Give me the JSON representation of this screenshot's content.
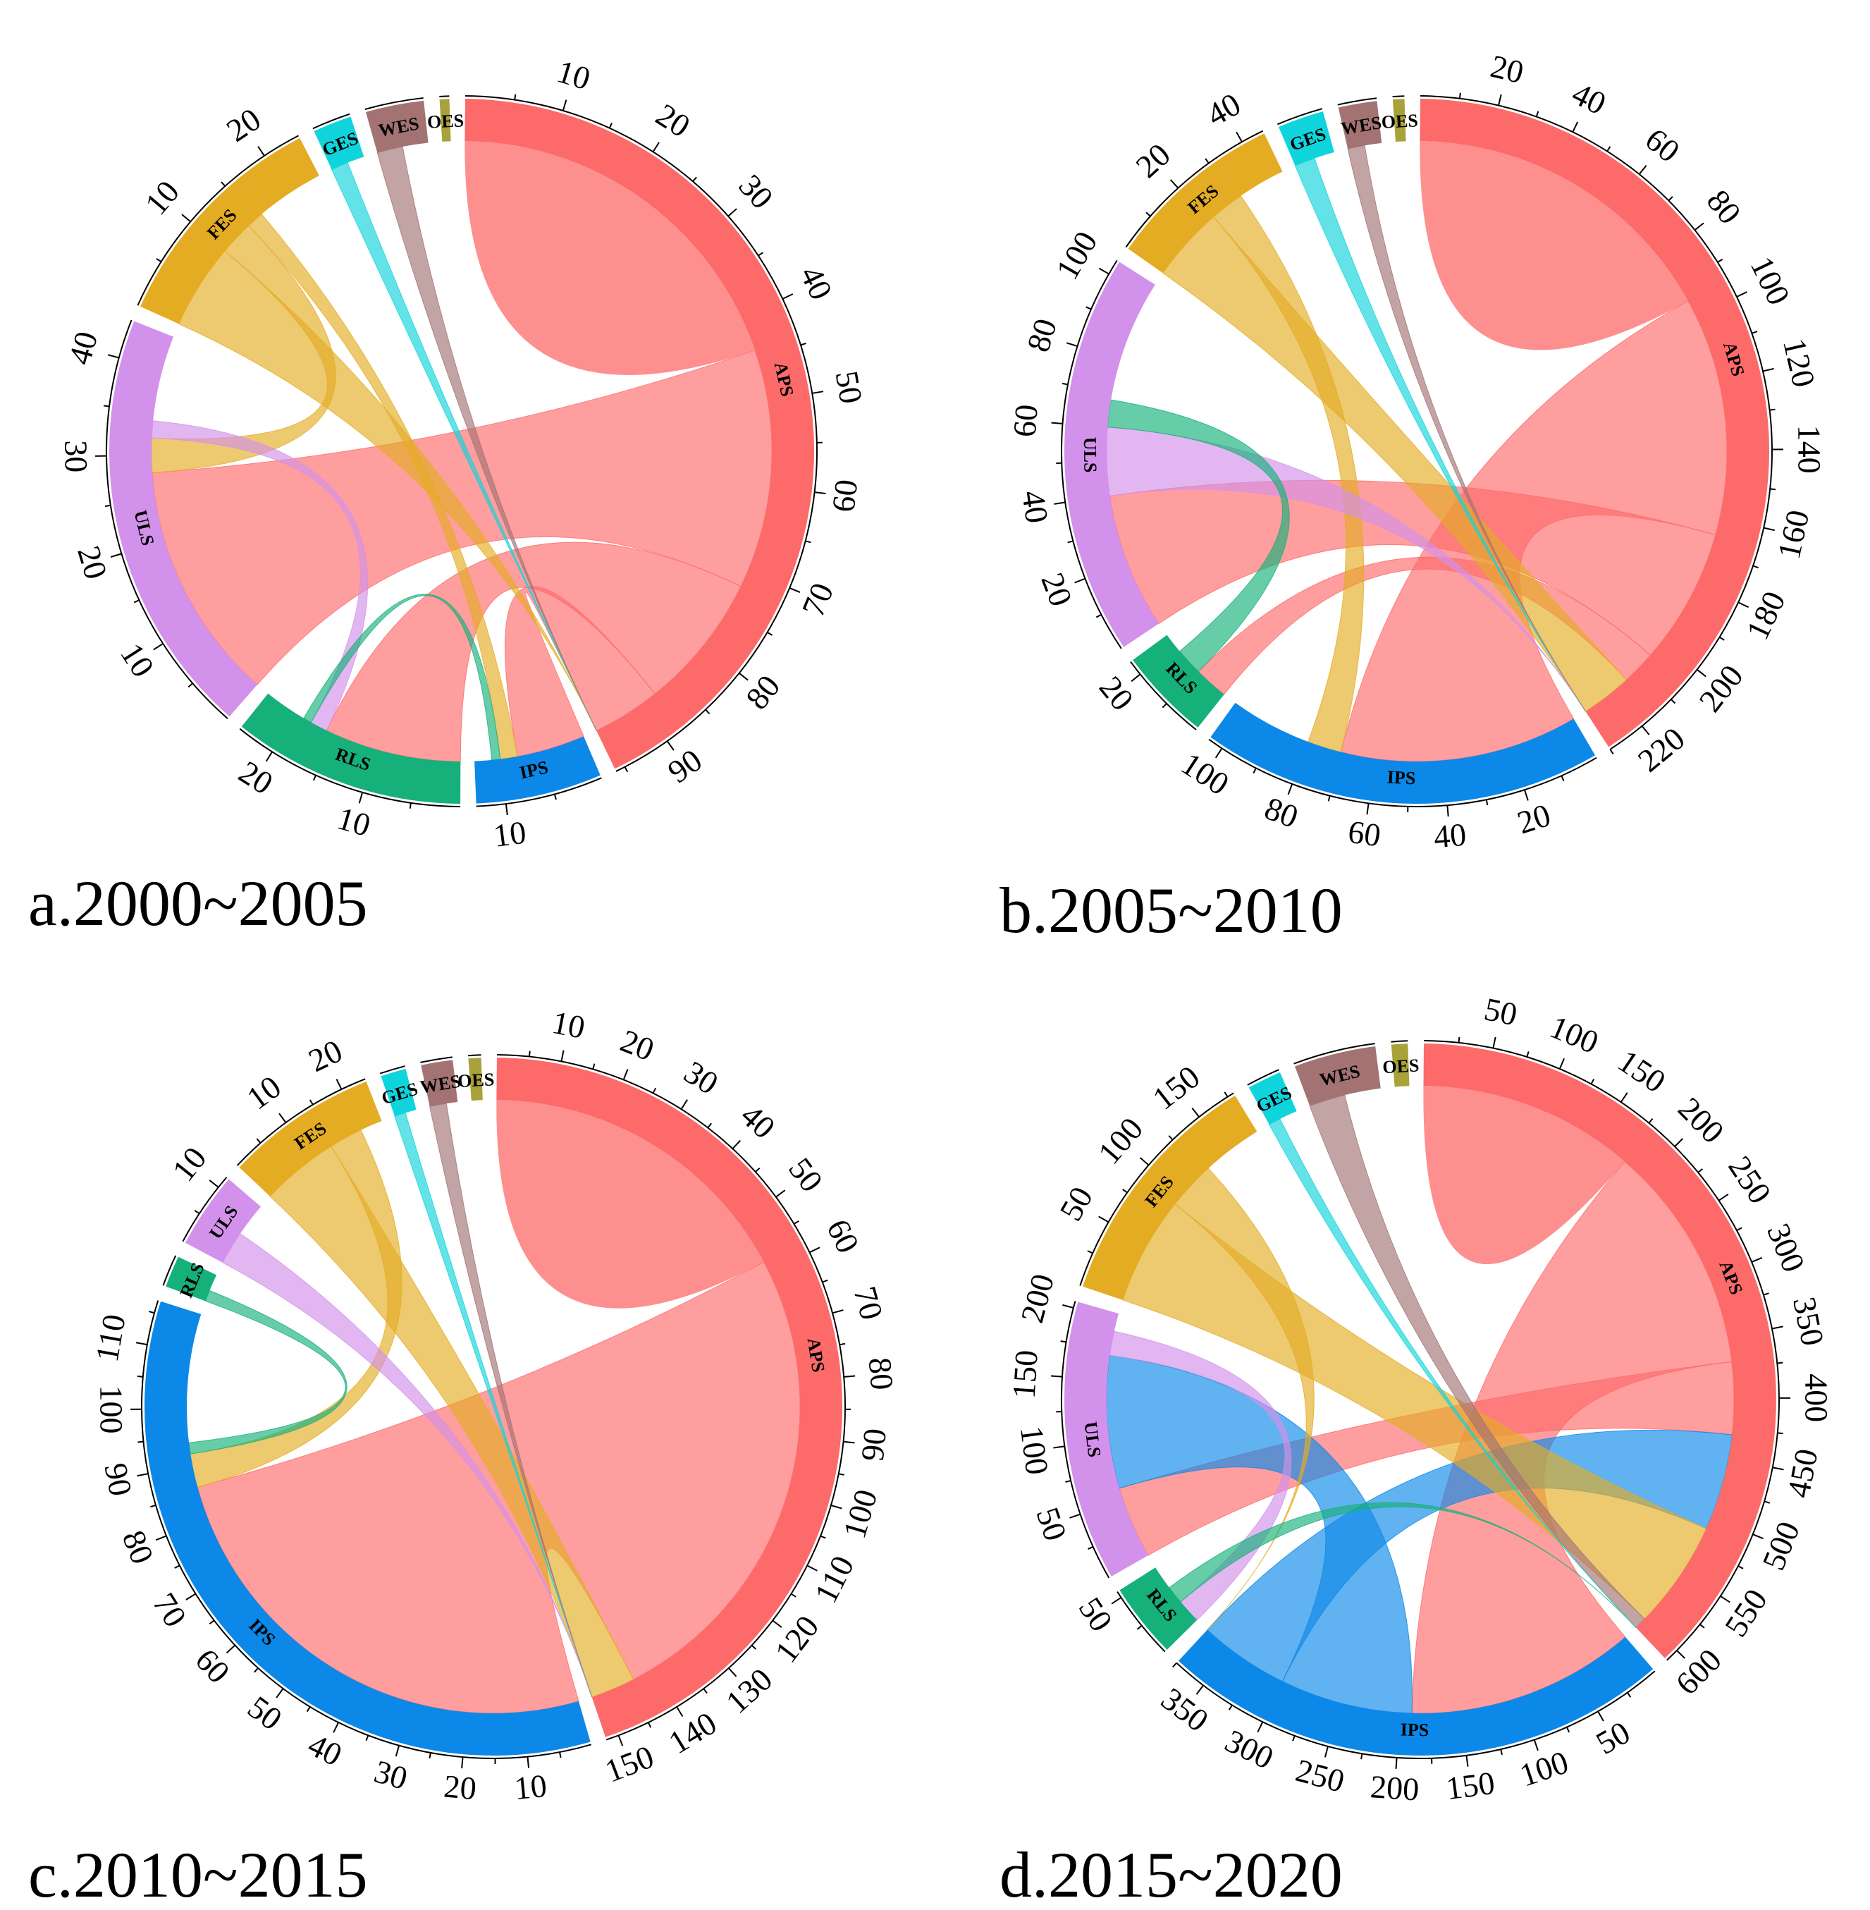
{
  "figure": {
    "sector_colors": {
      "APS": "#fd6a6a",
      "IPS": "#0c88e8",
      "RLS": "#16b07a",
      "ULS": "#d291ea",
      "FES": "#e4ac23",
      "GES": "#10d4dc",
      "WES": "#a37373",
      "OES": "#a8a23a"
    }
  },
  "chart_data": [
    {
      "type": "chord",
      "panel_label": "a.2000~2005",
      "sectors": [
        {
          "id": "APS",
          "label": "APS",
          "total": 96,
          "ticks": [
            "10",
            "20",
            "30",
            "40",
            "50",
            "60",
            "70",
            "80",
            "90"
          ]
        },
        {
          "id": "IPS",
          "label": "IPS",
          "total": 13,
          "ticks": [
            "10"
          ]
        },
        {
          "id": "RLS",
          "label": "RLS",
          "total": 24,
          "ticks": [
            "10",
            "20"
          ]
        },
        {
          "id": "ULS",
          "label": "ULS",
          "total": 44,
          "ticks": [
            "10",
            "20",
            "30",
            "40"
          ]
        },
        {
          "id": "FES",
          "label": "FES",
          "total": 24,
          "ticks": [
            "10",
            "20"
          ]
        },
        {
          "id": "GES",
          "label": "GES",
          "total": 4,
          "ticks": []
        },
        {
          "id": "WES",
          "label": "WES",
          "total": 6,
          "ticks": []
        },
        {
          "id": "OES",
          "label": "OES",
          "total": 1,
          "ticks": []
        }
      ],
      "flows": [
        {
          "from": "APS",
          "to": "APS",
          "value": 44
        },
        {
          "from": "APS",
          "to": "ULS",
          "value": 28
        },
        {
          "from": "APS",
          "to": "RLS",
          "value": 16
        },
        {
          "from": "APS",
          "to": "IPS",
          "value": 8
        },
        {
          "from": "FES",
          "to": "APS",
          "value": 10
        },
        {
          "from": "FES",
          "to": "ULS",
          "value": 4
        },
        {
          "from": "FES",
          "to": "IPS",
          "value": 2
        },
        {
          "from": "GES",
          "to": "APS",
          "value": 2
        },
        {
          "from": "WES",
          "to": "APS",
          "value": 3
        },
        {
          "from": "ULS",
          "to": "RLS",
          "value": 2
        },
        {
          "from": "RLS",
          "to": "IPS",
          "value": 1
        }
      ]
    },
    {
      "type": "chord",
      "panel_label": "b.2005~2010",
      "sectors": [
        {
          "id": "APS",
          "label": "APS",
          "total": 230,
          "ticks": [
            "20",
            "40",
            "60",
            "80",
            "100",
            "120",
            "140",
            "160",
            "180",
            "200",
            "220"
          ]
        },
        {
          "id": "IPS",
          "label": "IPS",
          "total": 104,
          "ticks": [
            "20",
            "40",
            "60",
            "80",
            "100"
          ]
        },
        {
          "id": "RLS",
          "label": "RLS",
          "total": 24,
          "ticks": [
            "20"
          ]
        },
        {
          "id": "ULS",
          "label": "ULS",
          "total": 104,
          "ticks": [
            "20",
            "40",
            "60",
            "80",
            "100"
          ]
        },
        {
          "id": "FES",
          "label": "FES",
          "total": 46,
          "ticks": [
            "20",
            "40"
          ]
        },
        {
          "id": "GES",
          "label": "GES",
          "total": 12,
          "ticks": []
        },
        {
          "id": "WES",
          "label": "WES",
          "total": 10,
          "ticks": []
        },
        {
          "id": "OES",
          "label": "OES",
          "total": 3,
          "ticks": []
        }
      ],
      "flows": [
        {
          "from": "APS",
          "to": "APS",
          "value": 95
        },
        {
          "from": "APS",
          "to": "IPS",
          "value": 70
        },
        {
          "from": "APS",
          "to": "ULS",
          "value": 40
        },
        {
          "from": "APS",
          "to": "RLS",
          "value": 10
        },
        {
          "from": "FES",
          "to": "APS",
          "value": 22
        },
        {
          "from": "FES",
          "to": "IPS",
          "value": 10
        },
        {
          "from": "ULS",
          "to": "APS",
          "value": 20
        },
        {
          "from": "RLS",
          "to": "ULS",
          "value": 8
        },
        {
          "from": "GES",
          "to": "APS",
          "value": 6
        },
        {
          "from": "WES",
          "to": "APS",
          "value": 5
        }
      ]
    },
    {
      "type": "chord",
      "panel_label": "c.2010~2015",
      "sectors": [
        {
          "id": "APS",
          "label": "APS",
          "total": 152,
          "ticks": [
            "10",
            "20",
            "30",
            "40",
            "50",
            "60",
            "70",
            "80",
            "90",
            "100",
            "110",
            "120",
            "130",
            "140",
            "150"
          ]
        },
        {
          "id": "IPS",
          "label": "IPS",
          "total": 117,
          "ticks": [
            "10",
            "20",
            "30",
            "40",
            "50",
            "60",
            "70",
            "80",
            "90",
            "100",
            "110"
          ]
        },
        {
          "id": "RLS",
          "label": "RLS",
          "total": 5,
          "ticks": []
        },
        {
          "id": "ULS",
          "label": "ULS",
          "total": 12,
          "ticks": [
            "10"
          ]
        },
        {
          "id": "FES",
          "label": "FES",
          "total": 24,
          "ticks": [
            "10",
            "20"
          ]
        },
        {
          "id": "GES",
          "label": "GES",
          "total": 4,
          "ticks": []
        },
        {
          "id": "WES",
          "label": "WES",
          "total": 5,
          "ticks": []
        },
        {
          "id": "OES",
          "label": "OES",
          "total": 2,
          "ticks": []
        }
      ],
      "flows": [
        {
          "from": "APS",
          "to": "APS",
          "value": 58
        },
        {
          "from": "APS",
          "to": "IPS",
          "value": 86
        },
        {
          "from": "FES",
          "to": "APS",
          "value": 14
        },
        {
          "from": "FES",
          "to": "IPS",
          "value": 6
        },
        {
          "from": "ULS",
          "to": "APS",
          "value": 6
        },
        {
          "from": "RLS",
          "to": "IPS",
          "value": 2
        },
        {
          "from": "GES",
          "to": "APS",
          "value": 2
        },
        {
          "from": "WES",
          "to": "APS",
          "value": 3
        }
      ]
    },
    {
      "type": "chord",
      "panel_label": "d.2015~2020",
      "sectors": [
        {
          "id": "APS",
          "label": "APS",
          "total": 610,
          "ticks": [
            "50",
            "100",
            "150",
            "200",
            "250",
            "300",
            "350",
            "400",
            "450",
            "500",
            "550",
            "600"
          ]
        },
        {
          "id": "IPS",
          "label": "IPS",
          "total": 375,
          "ticks": [
            "50",
            "100",
            "150",
            "200",
            "250",
            "300",
            "350"
          ]
        },
        {
          "id": "RLS",
          "label": "RLS",
          "total": 55,
          "ticks": [
            "50"
          ]
        },
        {
          "id": "ULS",
          "label": "ULS",
          "total": 205,
          "ticks": [
            "50",
            "100",
            "150",
            "200"
          ]
        },
        {
          "id": "FES",
          "label": "FES",
          "total": 180,
          "ticks": [
            "50",
            "100",
            "150"
          ]
        },
        {
          "id": "GES",
          "label": "GES",
          "total": 25,
          "ticks": []
        },
        {
          "id": "WES",
          "label": "WES",
          "total": 60,
          "ticks": []
        },
        {
          "id": "OES",
          "label": "OES",
          "total": 12,
          "ticks": []
        }
      ],
      "flows": [
        {
          "from": "APS",
          "to": "APS",
          "value": 180
        },
        {
          "from": "APS",
          "to": "IPS",
          "value": 190
        },
        {
          "from": "APS",
          "to": "ULS",
          "value": 60
        },
        {
          "from": "IPS",
          "to": "ULS",
          "value": 110
        },
        {
          "from": "IPS",
          "to": "APS",
          "value": 80
        },
        {
          "from": "FES",
          "to": "APS",
          "value": 90
        },
        {
          "from": "FES",
          "to": "IPS",
          "value": 40
        },
        {
          "from": "WES",
          "to": "APS",
          "value": 30
        },
        {
          "from": "ULS",
          "to": "RLS",
          "value": 20
        },
        {
          "from": "RLS",
          "to": "APS",
          "value": 15
        },
        {
          "from": "GES",
          "to": "APS",
          "value": 10
        }
      ]
    }
  ]
}
